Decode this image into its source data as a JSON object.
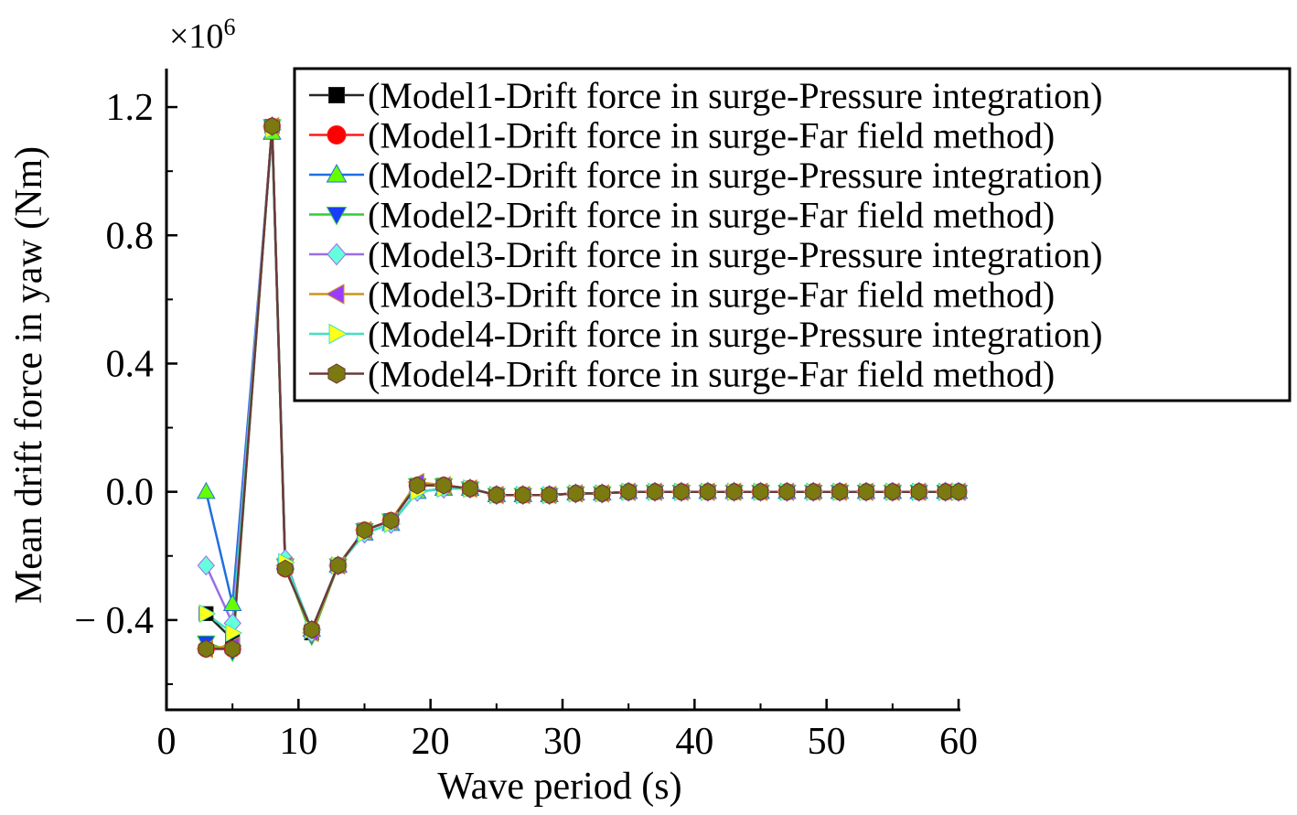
{
  "chart_data": {
    "type": "line",
    "xlabel": "Wave period (s)",
    "ylabel": "Mean drift force in yaw (Nm)",
    "y_multiplier_label": "×10",
    "y_multiplier_exponent": "6",
    "xlim": [
      0,
      60
    ],
    "ylim": [
      -0.68,
      1.32
    ],
    "xticks": [
      0,
      10,
      20,
      30,
      40,
      50,
      60
    ],
    "xtick_labels": [
      "0",
      "10",
      "20",
      "30",
      "40",
      "50",
      "60"
    ],
    "yticks": [
      -0.4,
      0.0,
      0.4,
      0.8,
      1.2
    ],
    "ytick_labels": [
      "− 0.4",
      "0.0",
      "0.4",
      "0.8",
      "1.2"
    ],
    "grid": false,
    "legend_position": "top-right",
    "x": [
      3,
      5,
      8,
      9,
      11,
      13,
      15,
      17,
      19,
      21,
      23,
      25,
      27,
      29,
      31,
      33,
      35,
      37,
      39,
      41,
      43,
      45,
      47,
      49,
      51,
      53,
      55,
      57,
      59,
      60
    ],
    "series": [
      {
        "name": "(Model1-Drift force in surge-Pressure integration)",
        "color": "#262626",
        "marker": "square",
        "values": [
          -0.38,
          -0.46,
          1.14,
          -0.23,
          -0.44,
          -0.23,
          -0.12,
          -0.09,
          0.02,
          0.02,
          0.01,
          -0.01,
          -0.01,
          -0.01,
          -0.005,
          -0.005,
          0,
          0,
          0,
          0,
          0,
          0,
          0,
          0,
          0,
          0,
          0,
          0,
          0,
          0
        ]
      },
      {
        "name": "(Model1-Drift force in surge-Far field method)",
        "color": "#ff1a1a",
        "marker": "circle",
        "values": [
          -0.49,
          -0.49,
          1.14,
          -0.24,
          -0.43,
          -0.23,
          -0.12,
          -0.09,
          0.02,
          0.02,
          0.01,
          -0.01,
          -0.01,
          -0.01,
          -0.005,
          -0.005,
          0,
          0,
          0,
          0,
          0,
          0,
          0,
          0,
          0,
          0,
          0,
          0,
          0,
          0
        ]
      },
      {
        "name": "(Model2-Drift force in surge-Pressure integration)",
        "color": "#1f6fe0",
        "marker": "triangle-up",
        "values": [
          0.0,
          -0.35,
          1.12,
          -0.22,
          -0.43,
          -0.23,
          -0.13,
          -0.1,
          0.0,
          0.01,
          0.01,
          -0.01,
          -0.01,
          -0.01,
          -0.005,
          -0.005,
          0,
          0,
          0,
          0,
          0,
          0,
          0,
          0,
          0,
          0,
          0,
          0,
          0,
          0
        ]
      },
      {
        "name": "(Model2-Drift force in surge-Far field method)",
        "color": "#33cc33",
        "marker": "triangle-down",
        "values": [
          -0.47,
          -0.5,
          1.14,
          -0.23,
          -0.45,
          -0.23,
          -0.12,
          -0.09,
          0.02,
          0.02,
          0.01,
          -0.01,
          -0.01,
          -0.01,
          -0.005,
          -0.005,
          0,
          0,
          0,
          0,
          0,
          0,
          0,
          0,
          0,
          0,
          0,
          0,
          0,
          0
        ]
      },
      {
        "name": "(Model3-Drift force in surge-Pressure integration)",
        "color": "#9b6ee6",
        "marker": "diamond",
        "values": [
          -0.23,
          -0.41,
          1.14,
          -0.21,
          -0.44,
          -0.23,
          -0.13,
          -0.1,
          0.0,
          0.01,
          0.01,
          -0.01,
          -0.01,
          -0.01,
          -0.005,
          -0.005,
          0,
          0,
          0,
          0,
          0,
          0,
          0,
          0,
          0,
          0,
          0,
          0,
          0,
          0
        ]
      },
      {
        "name": "(Model3-Drift force in surge-Far field method)",
        "color": "#c8961e",
        "marker": "triangle-left",
        "values": [
          -0.49,
          -0.48,
          1.14,
          -0.23,
          -0.44,
          -0.23,
          -0.12,
          -0.09,
          0.03,
          0.02,
          0.01,
          -0.01,
          -0.01,
          -0.01,
          -0.005,
          -0.005,
          0,
          0,
          0,
          0,
          0,
          0,
          0,
          0,
          0,
          0,
          0,
          0,
          0,
          0
        ]
      },
      {
        "name": "(Model4-Drift force in surge-Pressure integration)",
        "color": "#40e0c0",
        "marker": "triangle-right",
        "values": [
          -0.38,
          -0.44,
          1.13,
          -0.22,
          -0.43,
          -0.23,
          -0.13,
          -0.1,
          0.0,
          0.01,
          0.01,
          -0.01,
          -0.01,
          -0.01,
          -0.005,
          -0.005,
          0,
          0,
          0,
          0,
          0,
          0,
          0,
          0,
          0,
          0,
          0,
          0,
          0,
          0
        ]
      },
      {
        "name": "(Model4-Drift force in surge-Far field method)",
        "color": "#6b3a3a",
        "marker": "hexagon",
        "values": [
          -0.49,
          -0.49,
          1.14,
          -0.24,
          -0.43,
          -0.23,
          -0.12,
          -0.09,
          0.02,
          0.02,
          0.01,
          -0.01,
          -0.01,
          -0.01,
          -0.005,
          -0.005,
          0,
          0,
          0,
          0,
          0,
          0,
          0,
          0,
          0,
          0,
          0,
          0,
          0,
          0
        ]
      }
    ],
    "marker_fills": {
      "square": "#000000",
      "circle": "#ff0000",
      "triangle-up": "#66ff00",
      "triangle-down": "#1a3cff",
      "diamond": "#66ffdd",
      "triangle-left": "#9a3cff",
      "triangle-right": "#ffff1a",
      "hexagon": "#7a7a10"
    }
  }
}
